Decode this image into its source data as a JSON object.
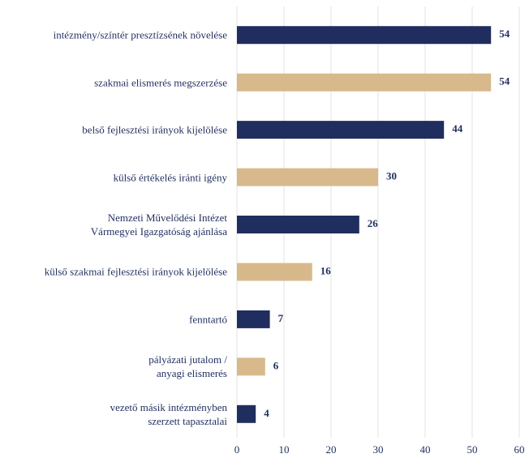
{
  "chart_data": {
    "type": "barh",
    "categories": [
      "intézmény/színtér presztízsének növelése",
      "szakmai elismerés megszerzése",
      "belső fejlesztési irányok kijelölése",
      "külső értékelés iránti igény",
      "Nemzeti Művelődési Intézet\nVármegyei Igazgatóság ajánlása",
      "külső szakmai fejlesztési irányok kijelölése",
      "fenntartó",
      "pályázati jutalom /\nanyagi elismerés",
      "vezető másik intézményben\nszerzett tapasztalai"
    ],
    "values": [
      54,
      54,
      44,
      30,
      26,
      16,
      7,
      6,
      4
    ],
    "colors": [
      "#1f2e5e",
      "#d8b98c",
      "#1f2e5e",
      "#d8b98c",
      "#1f2e5e",
      "#d8b98c",
      "#1f2e5e",
      "#d8b98c",
      "#1f2e5e"
    ],
    "xlim": [
      0,
      60
    ],
    "xticks": [
      0,
      10,
      20,
      30,
      40,
      50,
      60
    ],
    "grid": true
  }
}
